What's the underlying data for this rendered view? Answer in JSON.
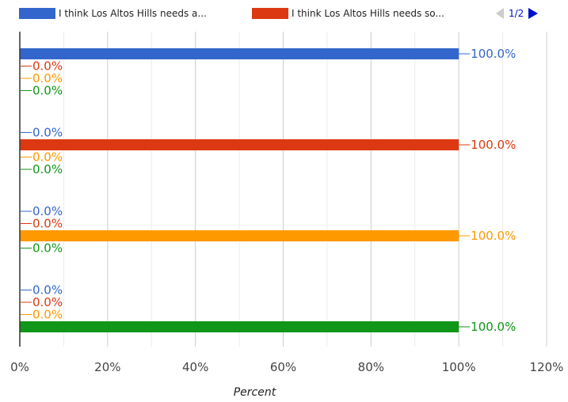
{
  "legend": {
    "items": [
      {
        "label": "I think Los Altos Hills needs a...",
        "color": "#3366cc"
      },
      {
        "label": "I think Los Altos Hills needs so...",
        "color": "#dc3912"
      }
    ],
    "page_indicator": "1/2"
  },
  "chart_data": {
    "type": "bar",
    "orientation": "horizontal",
    "xlabel": "Percent",
    "xlim": [
      0,
      120
    ],
    "x_ticks": [
      "0%",
      "20%",
      "40%",
      "60%",
      "80%",
      "100%",
      "120%"
    ],
    "grid": true,
    "value_label_format": "0.0%",
    "series": [
      {
        "color": "#3366cc",
        "values": [
          100,
          0,
          0,
          0
        ]
      },
      {
        "color": "#dc3912",
        "values": [
          0,
          100,
          0,
          0
        ]
      },
      {
        "color": "#ff9900",
        "values": [
          0,
          0,
          100,
          0
        ]
      },
      {
        "color": "#109618",
        "values": [
          0,
          0,
          0,
          100
        ]
      }
    ],
    "data_labels": [
      [
        "100.0%",
        "0.0%",
        "0.0%",
        "0.0%"
      ],
      [
        "0.0%",
        "100.0%",
        "0.0%",
        "0.0%"
      ],
      [
        "0.0%",
        "0.0%",
        "100.0%",
        "0.0%"
      ],
      [
        "0.0%",
        "0.0%",
        "0.0%",
        "100.0%"
      ]
    ]
  }
}
